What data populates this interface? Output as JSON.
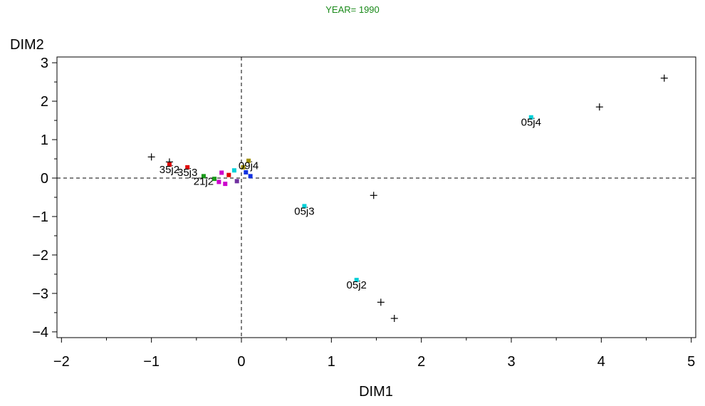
{
  "chart_data": {
    "type": "scatter",
    "title": "YEAR= 1990",
    "xlabel": "DIM1",
    "ylabel": "DIM2",
    "xlim": [
      -2.05,
      5.05
    ],
    "ylim": [
      -4.15,
      3.15
    ],
    "x_ticks": [
      -2,
      -1,
      0,
      1,
      2,
      3,
      4,
      5
    ],
    "x_tick_labels": [
      "−2",
      "−1",
      "0",
      "1",
      "2",
      "3",
      "4",
      "5"
    ],
    "y_ticks": [
      -4,
      -3,
      -2,
      -1,
      0,
      1,
      2,
      3
    ],
    "y_tick_labels": [
      "−4",
      "−3",
      "−2",
      "−1",
      "0",
      "1",
      "2",
      "3"
    ],
    "reference_lines": {
      "x": 0,
      "y": 0,
      "style": "dashed"
    },
    "colors": {
      "title": "#1a8a1a",
      "axis": "#000000",
      "ref_line": "#000000",
      "cyan": "#00d0d8",
      "red": "#e00000",
      "green": "#1a9a1a",
      "magenta": "#cc00cc",
      "blue": "#1030e0",
      "olive": "#a09000",
      "purple": "#7030a0"
    },
    "series": [
      {
        "marker": "plus",
        "points": [
          {
            "x": -1.0,
            "y": 0.55
          },
          {
            "x": -0.8,
            "y": 0.42
          },
          {
            "x": 1.47,
            "y": -0.45
          },
          {
            "x": 1.55,
            "y": -3.23
          },
          {
            "x": 1.7,
            "y": -3.65
          },
          {
            "x": 3.98,
            "y": 1.85
          },
          {
            "x": 4.7,
            "y": 2.6
          }
        ]
      },
      {
        "marker": "dot",
        "points": [
          {
            "x": 3.22,
            "y": 1.58,
            "label": "05j4",
            "color": "#00d0d8"
          },
          {
            "x": 0.7,
            "y": -0.73,
            "label": "05j3",
            "color": "#00d0d8"
          },
          {
            "x": 1.28,
            "y": -2.65,
            "label": "05j2",
            "color": "#00d0d8"
          },
          {
            "x": -0.8,
            "y": 0.35,
            "label": "35j2",
            "color": "#e00000"
          },
          {
            "x": -0.6,
            "y": 0.28,
            "label": "35j3",
            "color": "#e00000"
          },
          {
            "x": -0.42,
            "y": 0.05,
            "label": "21j2",
            "color": "#1a9a1a"
          },
          {
            "x": -0.22,
            "y": 0.14,
            "label": "",
            "color": "#cc00cc"
          },
          {
            "x": -0.18,
            "y": -0.15,
            "label": "",
            "color": "#cc00cc"
          },
          {
            "x": -0.08,
            "y": 0.2,
            "label": "",
            "color": "#00d0d8"
          },
          {
            "x": 0.02,
            "y": 0.28,
            "label": "",
            "color": "#a09000"
          },
          {
            "x": 0.08,
            "y": 0.45,
            "label": "09j4",
            "color": "#a09000"
          },
          {
            "x": 0.05,
            "y": 0.15,
            "label": "",
            "color": "#1030e0"
          },
          {
            "x": -0.05,
            "y": -0.08,
            "label": "",
            "color": "#7030a0"
          },
          {
            "x": -0.3,
            "y": -0.02,
            "label": "",
            "color": "#1a9a1a"
          },
          {
            "x": 0.1,
            "y": 0.05,
            "label": "",
            "color": "#1030e0"
          },
          {
            "x": -0.14,
            "y": 0.08,
            "label": "",
            "color": "#e00000"
          },
          {
            "x": -0.25,
            "y": -0.1,
            "label": "",
            "color": "#cc00cc"
          }
        ]
      }
    ]
  }
}
